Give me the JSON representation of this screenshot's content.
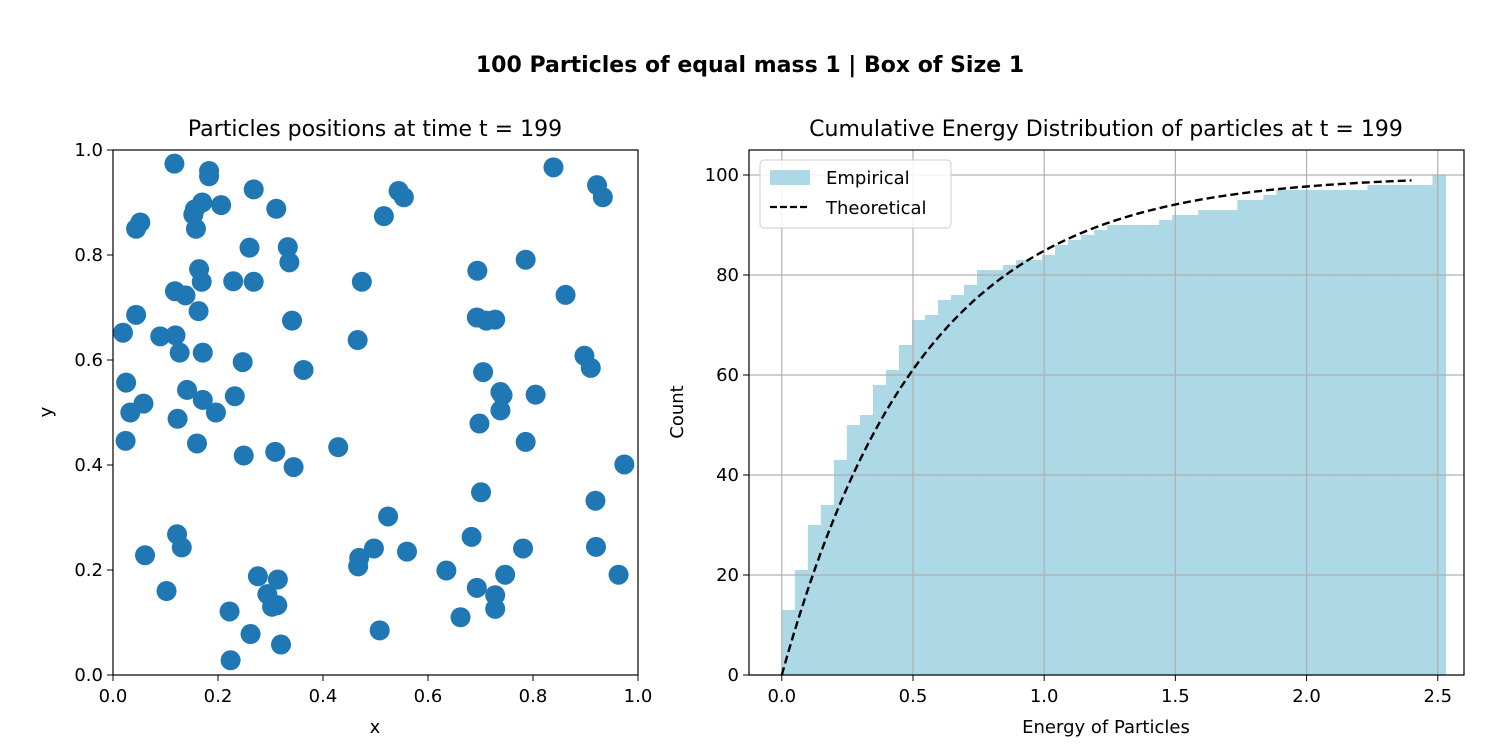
{
  "figure": {
    "suptitle": "100 Particles of equal mass 1 | Box of Size 1"
  },
  "chart_data": [
    {
      "type": "scatter",
      "title": "Particles positions at time t = 199",
      "xlabel": "x",
      "ylabel": "y",
      "xlim": [
        0,
        1
      ],
      "ylim": [
        0,
        1
      ],
      "xticks": [
        0.0,
        0.2,
        0.4,
        0.6,
        0.8,
        1.0
      ],
      "yticks": [
        0.0,
        0.2,
        0.4,
        0.6,
        0.8,
        1.0
      ],
      "xtick_labels": [
        "0.0",
        "0.2",
        "0.4",
        "0.6",
        "0.8",
        "1.0"
      ],
      "ytick_labels": [
        "0.0",
        "0.2",
        "0.4",
        "0.6",
        "0.8",
        "1.0"
      ],
      "grid": false,
      "marker_color": "#1f77b4",
      "points": [
        [
          0.117,
          0.974
        ],
        [
          0.183,
          0.96
        ],
        [
          0.183,
          0.95
        ],
        [
          0.268,
          0.925
        ],
        [
          0.544,
          0.922
        ],
        [
          0.554,
          0.91
        ],
        [
          0.839,
          0.967
        ],
        [
          0.922,
          0.933
        ],
        [
          0.933,
          0.91
        ],
        [
          0.17,
          0.9
        ],
        [
          0.206,
          0.895
        ],
        [
          0.311,
          0.888
        ],
        [
          0.156,
          0.887
        ],
        [
          0.153,
          0.877
        ],
        [
          0.516,
          0.874
        ],
        [
          0.052,
          0.862
        ],
        [
          0.044,
          0.85
        ],
        [
          0.158,
          0.85
        ],
        [
          0.26,
          0.814
        ],
        [
          0.333,
          0.815
        ],
        [
          0.336,
          0.786
        ],
        [
          0.786,
          0.791
        ],
        [
          0.164,
          0.773
        ],
        [
          0.694,
          0.77
        ],
        [
          0.169,
          0.749
        ],
        [
          0.229,
          0.75
        ],
        [
          0.268,
          0.749
        ],
        [
          0.474,
          0.749
        ],
        [
          0.118,
          0.731
        ],
        [
          0.138,
          0.723
        ],
        [
          0.862,
          0.724
        ],
        [
          0.044,
          0.686
        ],
        [
          0.163,
          0.693
        ],
        [
          0.341,
          0.675
        ],
        [
          0.693,
          0.681
        ],
        [
          0.711,
          0.675
        ],
        [
          0.728,
          0.677
        ],
        [
          0.019,
          0.652
        ],
        [
          0.09,
          0.645
        ],
        [
          0.119,
          0.647
        ],
        [
          0.127,
          0.614
        ],
        [
          0.171,
          0.614
        ],
        [
          0.466,
          0.638
        ],
        [
          0.247,
          0.596
        ],
        [
          0.363,
          0.581
        ],
        [
          0.898,
          0.608
        ],
        [
          0.91,
          0.585
        ],
        [
          0.705,
          0.577
        ],
        [
          0.025,
          0.557
        ],
        [
          0.141,
          0.543
        ],
        [
          0.738,
          0.539
        ],
        [
          0.742,
          0.533
        ],
        [
          0.805,
          0.534
        ],
        [
          0.058,
          0.517
        ],
        [
          0.033,
          0.5
        ],
        [
          0.171,
          0.524
        ],
        [
          0.232,
          0.531
        ],
        [
          0.738,
          0.504
        ],
        [
          0.123,
          0.488
        ],
        [
          0.196,
          0.5
        ],
        [
          0.698,
          0.479
        ],
        [
          0.024,
          0.446
        ],
        [
          0.16,
          0.441
        ],
        [
          0.786,
          0.444
        ],
        [
          0.249,
          0.418
        ],
        [
          0.309,
          0.425
        ],
        [
          0.344,
          0.396
        ],
        [
          0.429,
          0.434
        ],
        [
          0.974,
          0.401
        ],
        [
          0.701,
          0.348
        ],
        [
          0.919,
          0.332
        ],
        [
          0.524,
          0.302
        ],
        [
          0.122,
          0.268
        ],
        [
          0.131,
          0.243
        ],
        [
          0.061,
          0.228
        ],
        [
          0.683,
          0.263
        ],
        [
          0.92,
          0.244
        ],
        [
          0.469,
          0.223
        ],
        [
          0.467,
          0.207
        ],
        [
          0.497,
          0.241
        ],
        [
          0.56,
          0.235
        ],
        [
          0.781,
          0.241
        ],
        [
          0.635,
          0.199
        ],
        [
          0.276,
          0.188
        ],
        [
          0.314,
          0.182
        ],
        [
          0.294,
          0.154
        ],
        [
          0.303,
          0.13
        ],
        [
          0.313,
          0.133
        ],
        [
          0.693,
          0.166
        ],
        [
          0.728,
          0.152
        ],
        [
          0.747,
          0.191
        ],
        [
          0.963,
          0.191
        ],
        [
          0.102,
          0.16
        ],
        [
          0.222,
          0.121
        ],
        [
          0.728,
          0.126
        ],
        [
          0.662,
          0.11
        ],
        [
          0.508,
          0.085
        ],
        [
          0.262,
          0.078
        ],
        [
          0.32,
          0.058
        ],
        [
          0.224,
          0.028
        ]
      ]
    },
    {
      "type": "bar",
      "title": "Cumulative Energy Distribution of particles at t = 199",
      "xlabel": "Energy of Particles",
      "ylabel": "Count",
      "xlim": [
        -0.125,
        2.6
      ],
      "ylim": [
        0,
        105
      ],
      "xticks": [
        0.0,
        0.5,
        1.0,
        1.5,
        2.0,
        2.5
      ],
      "yticks": [
        0,
        20,
        40,
        60,
        80,
        100
      ],
      "xtick_labels": [
        "0.0",
        "0.5",
        "1.0",
        "1.5",
        "2.0",
        "2.5"
      ],
      "ytick_labels": [
        "0",
        "20",
        "40",
        "60",
        "80",
        "100"
      ],
      "grid": true,
      "legend": "top-left",
      "histogram": {
        "name": "Empirical",
        "color": "#add8e6",
        "bin_start": 0.0,
        "bin_width": 0.0496,
        "cumulative_counts": [
          13,
          21,
          30,
          34,
          43,
          50,
          52,
          58,
          61,
          66,
          71,
          72,
          75,
          76,
          78,
          81,
          81,
          82,
          83,
          83,
          84,
          86,
          87,
          88,
          89,
          90,
          90,
          90,
          90,
          91,
          92,
          92,
          93,
          93,
          93,
          95,
          95,
          96,
          97,
          97,
          97,
          97,
          97,
          97,
          97,
          98,
          98,
          98,
          98,
          98,
          100
        ]
      },
      "curve": {
        "name": "Theoretical",
        "style": "dashed",
        "color": "#000000",
        "formula": "100*(1-exp(-E/0.53))",
        "x_range": [
          0.0,
          2.4
        ],
        "scale": 100,
        "mean_energy": 0.53
      }
    }
  ]
}
